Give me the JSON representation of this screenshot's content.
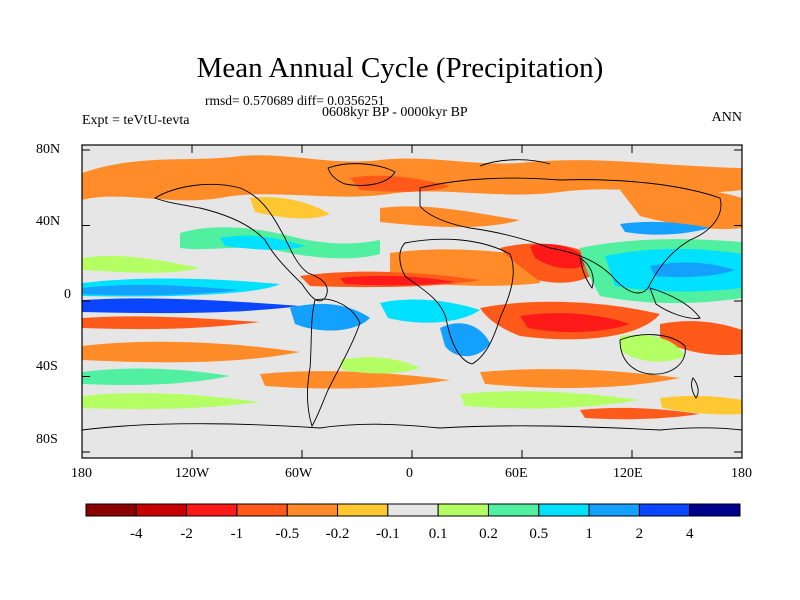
{
  "header": {
    "title": "Mean Annual Cycle (Precipitation)",
    "stats": "rmsd= 0.570689  diff= 0.0356251",
    "period": "0608kyr BP - 0000kyr BP",
    "experiment": "Expt = teVtU-tevta",
    "season": "ANN"
  },
  "axes": {
    "lat_ticks": [
      "80N",
      "40N",
      "0",
      "40S",
      "80S"
    ],
    "lon_ticks": [
      "180",
      "120W",
      "60W",
      "0",
      "60E",
      "120E",
      "180"
    ]
  },
  "colorbar": {
    "labels": [
      "-4",
      "-2",
      "-1",
      "-0.5",
      "-0.2",
      "-0.1",
      "0.1",
      "0.2",
      "0.5",
      "1",
      "2",
      "4"
    ],
    "colors": [
      "#8b0000",
      "#c80000",
      "#ff1a1a",
      "#ff5a1a",
      "#ff8c28",
      "#ffc832",
      "#e6e6e6",
      "#b4ff64",
      "#50f0a0",
      "#00e1ff",
      "#14a0ff",
      "#0a46ff",
      "#00008c"
    ]
  }
}
